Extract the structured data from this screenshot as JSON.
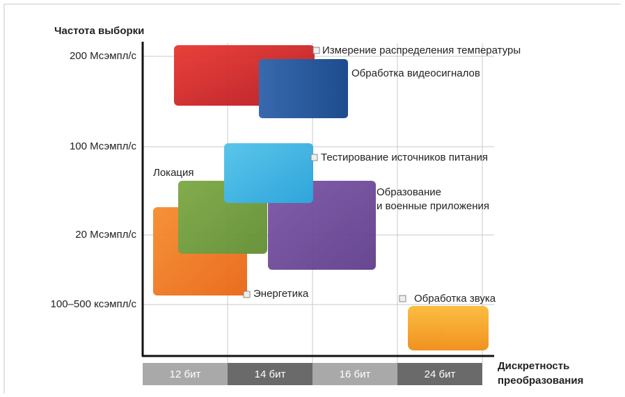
{
  "y_axis": {
    "title": "Частота выборки",
    "labels": [
      "200 Мсэмпл/с",
      "100 Мсэмпл/с",
      "20 Мсэмпл/с",
      "100–500 ксэмпл/с"
    ]
  },
  "x_axis": {
    "title": [
      "Дискретность",
      "преобразования"
    ],
    "labels": [
      "12 бит",
      "14 бит",
      "16 бит",
      "24 бит"
    ]
  },
  "regions": [
    {
      "label": [
        "Измерение распределения температуры"
      ]
    },
    {
      "label": [
        "Обработка видеосигналов"
      ]
    },
    {
      "label": [
        "Тестирование источников питания"
      ]
    },
    {
      "label": [
        "Локация"
      ]
    },
    {
      "label": [
        "Образование",
        "и военные приложения"
      ]
    },
    {
      "label": [
        "Энергетика"
      ]
    },
    {
      "label": [
        "Обработка звука"
      ]
    }
  ]
}
